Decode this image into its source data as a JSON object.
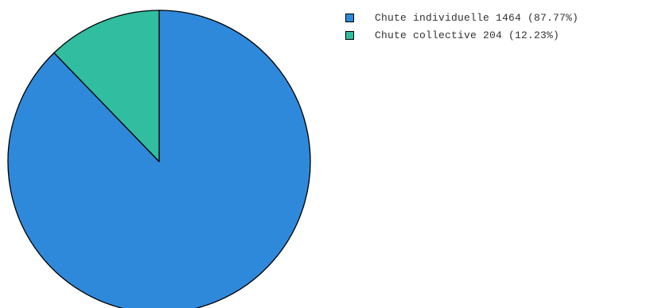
{
  "chart_data": {
    "type": "pie",
    "title": "",
    "legend_position": "top-right",
    "slices": [
      {
        "label": "Chute individuelle 1464 (87.77%)",
        "value": 1464,
        "percent": 87.77,
        "color": "#2f89db"
      },
      {
        "label": "Chute collective 204 (12.23%)",
        "value": 204,
        "percent": 12.23,
        "color": "#31bd9f"
      }
    ]
  }
}
